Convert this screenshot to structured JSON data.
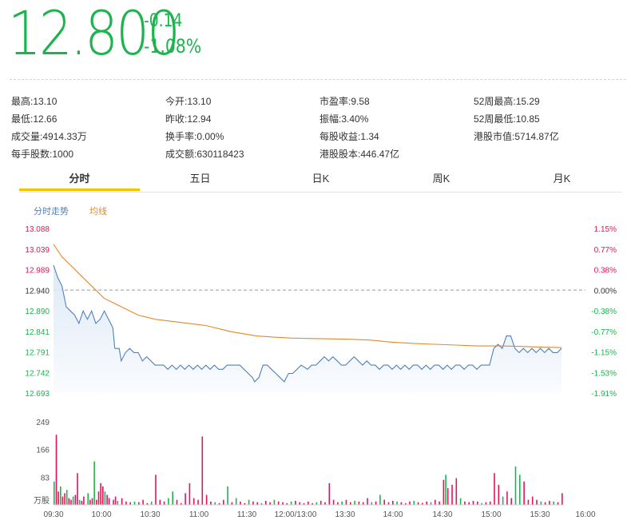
{
  "quote": {
    "price": "12.800",
    "change": "-0.14",
    "change_pct": "-1.08%"
  },
  "stats": [
    {
      "label": "最高:",
      "value": "13.10"
    },
    {
      "label": "今开:",
      "value": "13.10"
    },
    {
      "label": "市盈率:",
      "value": "9.58"
    },
    {
      "label": "52周最高:",
      "value": "15.29"
    },
    {
      "label": "最低:",
      "value": "12.66"
    },
    {
      "label": "昨收:",
      "value": "12.94"
    },
    {
      "label": "振幅:",
      "value": "3.40%"
    },
    {
      "label": "52周最低:",
      "value": "10.85"
    },
    {
      "label": "成交量:",
      "value": "4914.33万"
    },
    {
      "label": "换手率:",
      "value": "0.00%"
    },
    {
      "label": "每股收益:",
      "value": "1.34"
    },
    {
      "label": "港股市值:",
      "value": "5714.87亿"
    },
    {
      "label": "每手股数:",
      "value": "1000"
    },
    {
      "label": "成交额:",
      "value": "630118423"
    },
    {
      "label": "港股股本:",
      "value": "446.47亿"
    }
  ],
  "tabs": [
    "分时",
    "五日",
    "日K",
    "周K",
    "月K"
  ],
  "active_tab": "分时",
  "legend": {
    "price_line": "分时走势",
    "avg_line": "均线"
  },
  "colors": {
    "up": "#e4145a",
    "down": "#1db34f",
    "price_line": "#4f81bd",
    "avg_line": "#e08a2c",
    "tab_accent": "#f5c400",
    "area_fill": "#dde9f7"
  },
  "chart_data": {
    "type": "line",
    "prev_close": 12.94,
    "price_axis": {
      "left_ticks": [
        "13.088",
        "13.039",
        "12.989",
        "12.940",
        "12.890",
        "12.841",
        "12.791",
        "12.742",
        "12.693"
      ],
      "right_ticks": [
        "1.15%",
        "0.77%",
        "0.38%",
        "0.00%",
        "-0.38%",
        "-0.77%",
        "-1.15%",
        "-1.53%",
        "-1.91%"
      ],
      "ylim": [
        12.693,
        13.088
      ]
    },
    "volume_axis": {
      "ticks": [
        "249",
        "166",
        "83"
      ],
      "unit": "万股",
      "ylim": [
        0,
        249
      ]
    },
    "x_ticks": [
      "09:30",
      "10:00",
      "10:30",
      "11:00",
      "11:30",
      "12:00/13:00",
      "13:30",
      "14:00",
      "14:30",
      "15:00",
      "15:30",
      "16:00"
    ],
    "series": [
      {
        "name": "分时走势",
        "points": [
          [
            0,
            13.0
          ],
          [
            2,
            12.97
          ],
          [
            4,
            12.95
          ],
          [
            6,
            12.9
          ],
          [
            8,
            12.89
          ],
          [
            10,
            12.88
          ],
          [
            12,
            12.86
          ],
          [
            14,
            12.89
          ],
          [
            16,
            12.87
          ],
          [
            18,
            12.89
          ],
          [
            20,
            12.86
          ],
          [
            22,
            12.87
          ],
          [
            24,
            12.89
          ],
          [
            26,
            12.87
          ],
          [
            28,
            12.85
          ],
          [
            29,
            12.8
          ],
          [
            31,
            12.8
          ],
          [
            32,
            12.77
          ],
          [
            34,
            12.79
          ],
          [
            36,
            12.8
          ],
          [
            38,
            12.79
          ],
          [
            40,
            12.79
          ],
          [
            42,
            12.77
          ],
          [
            44,
            12.78
          ],
          [
            46,
            12.77
          ],
          [
            48,
            12.76
          ],
          [
            50,
            12.76
          ],
          [
            52,
            12.76
          ],
          [
            54,
            12.75
          ],
          [
            56,
            12.76
          ],
          [
            58,
            12.75
          ],
          [
            60,
            12.76
          ],
          [
            62,
            12.75
          ],
          [
            64,
            12.76
          ],
          [
            66,
            12.75
          ],
          [
            68,
            12.76
          ],
          [
            70,
            12.75
          ],
          [
            72,
            12.76
          ],
          [
            74,
            12.75
          ],
          [
            76,
            12.76
          ],
          [
            78,
            12.75
          ],
          [
            80,
            12.75
          ],
          [
            82,
            12.76
          ],
          [
            84,
            12.76
          ],
          [
            86,
            12.76
          ],
          [
            88,
            12.76
          ],
          [
            90,
            12.75
          ],
          [
            92,
            12.74
          ],
          [
            94,
            12.73
          ],
          [
            95,
            12.72
          ],
          [
            97,
            12.73
          ],
          [
            99,
            12.76
          ],
          [
            101,
            12.76
          ],
          [
            103,
            12.75
          ],
          [
            105,
            12.74
          ],
          [
            107,
            12.73
          ],
          [
            109,
            12.72
          ],
          [
            111,
            12.74
          ],
          [
            113,
            12.74
          ],
          [
            115,
            12.75
          ],
          [
            117,
            12.76
          ],
          [
            120,
            12.75
          ],
          [
            122,
            12.76
          ],
          [
            124,
            12.76
          ],
          [
            126,
            12.77
          ],
          [
            128,
            12.78
          ],
          [
            130,
            12.77
          ],
          [
            132,
            12.78
          ],
          [
            134,
            12.77
          ],
          [
            136,
            12.76
          ],
          [
            138,
            12.76
          ],
          [
            140,
            12.77
          ],
          [
            142,
            12.78
          ],
          [
            144,
            12.77
          ],
          [
            146,
            12.76
          ],
          [
            148,
            12.77
          ],
          [
            150,
            12.76
          ],
          [
            152,
            12.76
          ],
          [
            154,
            12.75
          ],
          [
            156,
            12.76
          ],
          [
            158,
            12.76
          ],
          [
            160,
            12.75
          ],
          [
            162,
            12.76
          ],
          [
            164,
            12.75
          ],
          [
            166,
            12.76
          ],
          [
            168,
            12.75
          ],
          [
            170,
            12.76
          ],
          [
            172,
            12.76
          ],
          [
            174,
            12.75
          ],
          [
            176,
            12.76
          ],
          [
            178,
            12.75
          ],
          [
            180,
            12.76
          ],
          [
            182,
            12.76
          ],
          [
            184,
            12.75
          ],
          [
            186,
            12.76
          ],
          [
            188,
            12.75
          ],
          [
            190,
            12.76
          ],
          [
            192,
            12.76
          ],
          [
            194,
            12.75
          ],
          [
            196,
            12.76
          ],
          [
            198,
            12.76
          ],
          [
            200,
            12.75
          ],
          [
            202,
            12.76
          ],
          [
            204,
            12.76
          ],
          [
            206,
            12.76
          ],
          [
            208,
            12.8
          ],
          [
            210,
            12.81
          ],
          [
            212,
            12.8
          ],
          [
            214,
            12.83
          ],
          [
            216,
            12.83
          ],
          [
            218,
            12.8
          ],
          [
            220,
            12.79
          ],
          [
            222,
            12.8
          ],
          [
            224,
            12.79
          ],
          [
            226,
            12.8
          ],
          [
            228,
            12.79
          ],
          [
            230,
            12.8
          ],
          [
            232,
            12.79
          ],
          [
            234,
            12.8
          ],
          [
            236,
            12.79
          ],
          [
            238,
            12.79
          ],
          [
            240,
            12.8
          ]
        ]
      },
      {
        "name": "均线",
        "points": [
          [
            0,
            13.05
          ],
          [
            4,
            13.02
          ],
          [
            8,
            13.0
          ],
          [
            12,
            12.98
          ],
          [
            16,
            12.96
          ],
          [
            20,
            12.94
          ],
          [
            22,
            12.93
          ],
          [
            24,
            12.92
          ],
          [
            28,
            12.91
          ],
          [
            32,
            12.9
          ],
          [
            36,
            12.89
          ],
          [
            40,
            12.88
          ],
          [
            48,
            12.87
          ],
          [
            56,
            12.865
          ],
          [
            64,
            12.86
          ],
          [
            72,
            12.855
          ],
          [
            76,
            12.85
          ],
          [
            80,
            12.845
          ],
          [
            84,
            12.84
          ],
          [
            90,
            12.835
          ],
          [
            96,
            12.83
          ],
          [
            104,
            12.827
          ],
          [
            112,
            12.825
          ],
          [
            120,
            12.824
          ],
          [
            130,
            12.823
          ],
          [
            140,
            12.822
          ],
          [
            150,
            12.82
          ],
          [
            160,
            12.815
          ],
          [
            170,
            12.812
          ],
          [
            180,
            12.81
          ],
          [
            190,
            12.808
          ],
          [
            200,
            12.806
          ],
          [
            210,
            12.806
          ],
          [
            220,
            12.805
          ],
          [
            230,
            12.803
          ],
          [
            240,
            12.802
          ]
        ]
      }
    ],
    "volume": [
      [
        0,
        70,
        "down"
      ],
      [
        1,
        210,
        "up"
      ],
      [
        2,
        40,
        "up"
      ],
      [
        3,
        55,
        "down"
      ],
      [
        4,
        25,
        "up"
      ],
      [
        5,
        35,
        "up"
      ],
      [
        6,
        45,
        "down"
      ],
      [
        7,
        20,
        "up"
      ],
      [
        8,
        15,
        "up"
      ],
      [
        9,
        25,
        "down"
      ],
      [
        10,
        30,
        "up"
      ],
      [
        11,
        95,
        "up"
      ],
      [
        12,
        15,
        "down"
      ],
      [
        13,
        12,
        "up"
      ],
      [
        14,
        25,
        "up"
      ],
      [
        16,
        35,
        "down"
      ],
      [
        17,
        15,
        "up"
      ],
      [
        18,
        20,
        "up"
      ],
      [
        19,
        130,
        "down"
      ],
      [
        20,
        15,
        "up"
      ],
      [
        21,
        40,
        "up"
      ],
      [
        22,
        65,
        "up"
      ],
      [
        23,
        55,
        "up"
      ],
      [
        24,
        40,
        "down"
      ],
      [
        25,
        30,
        "up"
      ],
      [
        26,
        20,
        "up"
      ],
      [
        28,
        15,
        "up"
      ],
      [
        29,
        25,
        "up"
      ],
      [
        30,
        12,
        "down"
      ],
      [
        32,
        20,
        "up"
      ],
      [
        34,
        10,
        "up"
      ],
      [
        36,
        8,
        "up"
      ],
      [
        38,
        10,
        "down"
      ],
      [
        40,
        8,
        "up"
      ],
      [
        42,
        15,
        "up"
      ],
      [
        44,
        5,
        "up"
      ],
      [
        46,
        10,
        "down"
      ],
      [
        48,
        90,
        "up"
      ],
      [
        50,
        15,
        "up"
      ],
      [
        52,
        10,
        "up"
      ],
      [
        54,
        20,
        "down"
      ],
      [
        56,
        40,
        "down"
      ],
      [
        58,
        15,
        "up"
      ],
      [
        60,
        5,
        "up"
      ],
      [
        62,
        35,
        "up"
      ],
      [
        64,
        65,
        "up"
      ],
      [
        66,
        20,
        "up"
      ],
      [
        68,
        15,
        "up"
      ],
      [
        70,
        205,
        "up"
      ],
      [
        72,
        30,
        "up"
      ],
      [
        74,
        10,
        "up"
      ],
      [
        76,
        8,
        "down"
      ],
      [
        78,
        5,
        "up"
      ],
      [
        80,
        15,
        "up"
      ],
      [
        82,
        55,
        "down"
      ],
      [
        84,
        8,
        "up"
      ],
      [
        86,
        20,
        "down"
      ],
      [
        88,
        10,
        "up"
      ],
      [
        90,
        5,
        "up"
      ],
      [
        92,
        15,
        "down"
      ],
      [
        94,
        10,
        "up"
      ],
      [
        96,
        8,
        "up"
      ],
      [
        98,
        5,
        "down"
      ],
      [
        100,
        12,
        "up"
      ],
      [
        102,
        8,
        "up"
      ],
      [
        104,
        15,
        "down"
      ],
      [
        106,
        10,
        "up"
      ],
      [
        108,
        8,
        "up"
      ],
      [
        110,
        5,
        "up"
      ],
      [
        112,
        10,
        "down"
      ],
      [
        114,
        12,
        "up"
      ],
      [
        116,
        8,
        "up"
      ],
      [
        118,
        5,
        "up"
      ],
      [
        120,
        10,
        "up"
      ],
      [
        122,
        5,
        "up"
      ],
      [
        124,
        8,
        "down"
      ],
      [
        126,
        12,
        "up"
      ],
      [
        128,
        8,
        "up"
      ],
      [
        130,
        65,
        "up"
      ],
      [
        132,
        15,
        "up"
      ],
      [
        134,
        8,
        "up"
      ],
      [
        136,
        10,
        "down"
      ],
      [
        138,
        15,
        "up"
      ],
      [
        140,
        8,
        "up"
      ],
      [
        142,
        12,
        "down"
      ],
      [
        144,
        10,
        "up"
      ],
      [
        146,
        8,
        "up"
      ],
      [
        148,
        20,
        "up"
      ],
      [
        150,
        8,
        "down"
      ],
      [
        152,
        10,
        "up"
      ],
      [
        154,
        30,
        "down"
      ],
      [
        156,
        15,
        "up"
      ],
      [
        158,
        8,
        "up"
      ],
      [
        160,
        12,
        "up"
      ],
      [
        162,
        10,
        "down"
      ],
      [
        164,
        8,
        "up"
      ],
      [
        166,
        5,
        "up"
      ],
      [
        168,
        10,
        "up"
      ],
      [
        170,
        12,
        "down"
      ],
      [
        172,
        8,
        "up"
      ],
      [
        174,
        6,
        "up"
      ],
      [
        176,
        10,
        "up"
      ],
      [
        178,
        8,
        "down"
      ],
      [
        180,
        15,
        "up"
      ],
      [
        182,
        10,
        "up"
      ],
      [
        184,
        75,
        "up"
      ],
      [
        185,
        90,
        "down"
      ],
      [
        186,
        50,
        "up"
      ],
      [
        188,
        60,
        "up"
      ],
      [
        190,
        80,
        "up"
      ],
      [
        192,
        20,
        "down"
      ],
      [
        194,
        10,
        "up"
      ],
      [
        196,
        8,
        "up"
      ],
      [
        198,
        12,
        "up"
      ],
      [
        200,
        10,
        "up"
      ],
      [
        202,
        5,
        "down"
      ],
      [
        204,
        8,
        "up"
      ],
      [
        206,
        10,
        "up"
      ],
      [
        208,
        95,
        "up"
      ],
      [
        210,
        60,
        "up"
      ],
      [
        212,
        25,
        "down"
      ],
      [
        214,
        40,
        "up"
      ],
      [
        216,
        20,
        "up"
      ],
      [
        218,
        115,
        "down"
      ],
      [
        220,
        90,
        "down"
      ],
      [
        222,
        70,
        "up"
      ],
      [
        224,
        15,
        "up"
      ],
      [
        226,
        25,
        "up"
      ],
      [
        228,
        15,
        "up"
      ],
      [
        230,
        10,
        "down"
      ],
      [
        232,
        8,
        "up"
      ],
      [
        234,
        12,
        "up"
      ],
      [
        236,
        10,
        "down"
      ],
      [
        238,
        8,
        "up"
      ],
      [
        240,
        35,
        "up"
      ]
    ]
  }
}
